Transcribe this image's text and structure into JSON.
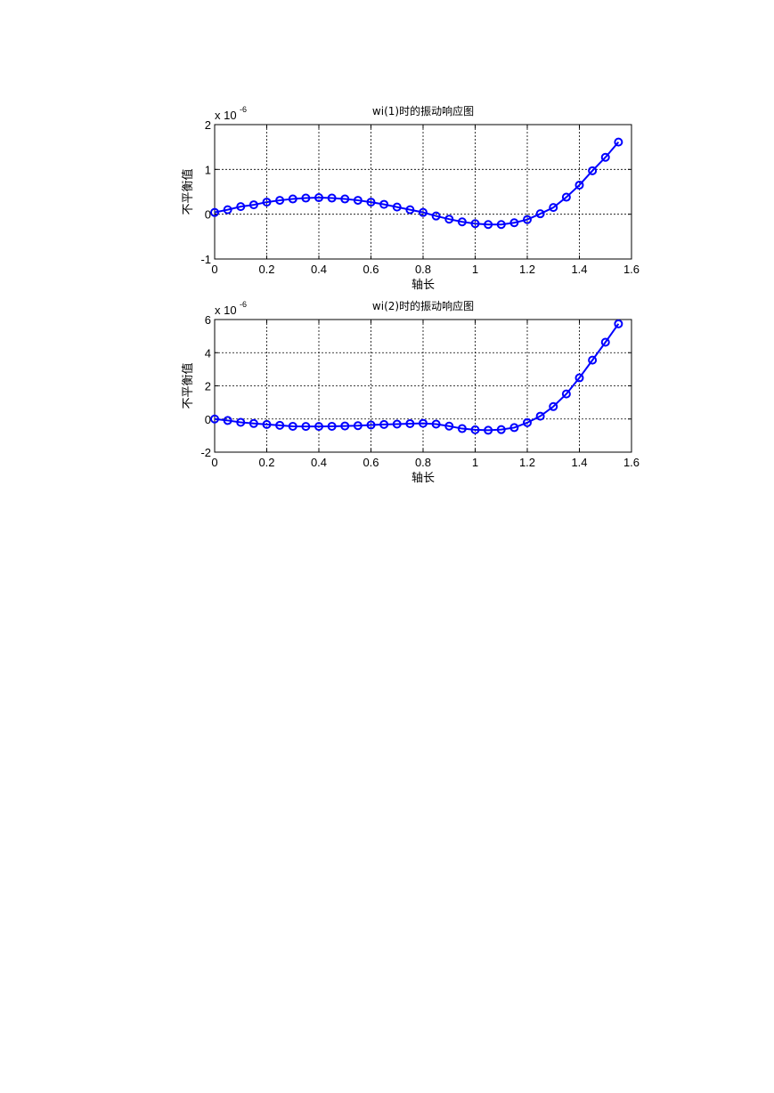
{
  "chart_data": [
    {
      "type": "line",
      "title": "wi(1)时的振动响应图",
      "xlabel": "轴长",
      "ylabel": "不平衡值",
      "exponent_prefix": "x 10",
      "exponent_power": "-6",
      "xlim": [
        0,
        1.6
      ],
      "ylim": [
        -1,
        2
      ],
      "xticks": [
        "0",
        "0.2",
        "0.4",
        "0.6",
        "0.8",
        "1",
        "1.2",
        "1.4",
        "1.6"
      ],
      "yticks": [
        "-1",
        "0",
        "1",
        "2"
      ],
      "grid": true,
      "line_color": "#0000ff",
      "marker": "circle",
      "series": [
        {
          "x": [
            0,
            0.05,
            0.1,
            0.15,
            0.2,
            0.25,
            0.3,
            0.35,
            0.4,
            0.45,
            0.5,
            0.55,
            0.6,
            0.65,
            0.7,
            0.75,
            0.8,
            0.85,
            0.9,
            0.95,
            1.0,
            1.05,
            1.1,
            1.15,
            1.2,
            1.25,
            1.3,
            1.35,
            1.4,
            1.45,
            1.5,
            1.55
          ],
          "values": [
            0.04,
            0.1,
            0.17,
            0.21,
            0.27,
            0.31,
            0.34,
            0.36,
            0.37,
            0.36,
            0.34,
            0.31,
            0.27,
            0.22,
            0.16,
            0.1,
            0.04,
            -0.04,
            -0.11,
            -0.17,
            -0.21,
            -0.23,
            -0.23,
            -0.19,
            -0.12,
            0.01,
            0.15,
            0.38,
            0.65,
            0.97,
            1.27,
            1.61
          ]
        }
      ]
    },
    {
      "type": "line",
      "title": "wi(2)时的振动响应图",
      "xlabel": "轴长",
      "ylabel": "不平衡值",
      "exponent_prefix": "x 10",
      "exponent_power": "-6",
      "xlim": [
        0,
        1.6
      ],
      "ylim": [
        -2,
        6
      ],
      "xticks": [
        "0",
        "0.2",
        "0.4",
        "0.6",
        "0.8",
        "1",
        "1.2",
        "1.4",
        "1.6"
      ],
      "yticks": [
        "-2",
        "0",
        "2",
        "4",
        "6"
      ],
      "grid": true,
      "line_color": "#0000ff",
      "marker": "circle",
      "series": [
        {
          "x": [
            0,
            0.05,
            0.1,
            0.15,
            0.2,
            0.25,
            0.3,
            0.35,
            0.4,
            0.45,
            0.5,
            0.55,
            0.6,
            0.65,
            0.7,
            0.75,
            0.8,
            0.85,
            0.9,
            0.95,
            1.0,
            1.05,
            1.1,
            1.15,
            1.2,
            1.25,
            1.3,
            1.35,
            1.4,
            1.45,
            1.5,
            1.55
          ],
          "values": [
            0.0,
            -0.09,
            -0.2,
            -0.27,
            -0.33,
            -0.38,
            -0.44,
            -0.45,
            -0.45,
            -0.44,
            -0.42,
            -0.4,
            -0.36,
            -0.33,
            -0.31,
            -0.28,
            -0.26,
            -0.31,
            -0.43,
            -0.58,
            -0.65,
            -0.68,
            -0.64,
            -0.52,
            -0.22,
            0.17,
            0.75,
            1.51,
            2.48,
            3.55,
            4.63,
            5.74
          ]
        }
      ]
    }
  ]
}
